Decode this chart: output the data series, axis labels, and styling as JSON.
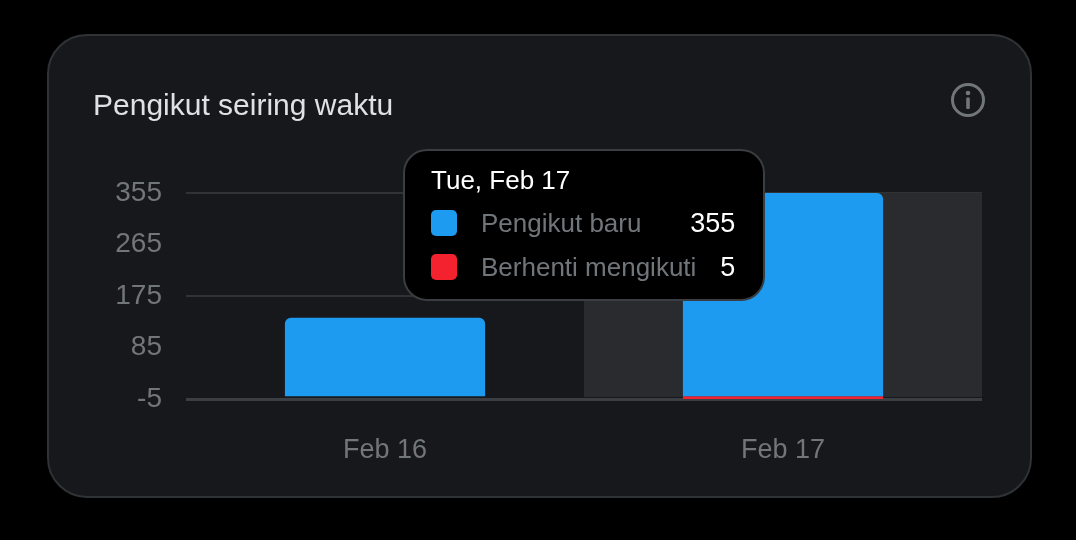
{
  "chart_data": {
    "type": "bar",
    "title": "Pengikut seiring waktu",
    "categories": [
      "Feb 16",
      "Feb 17"
    ],
    "series": [
      {
        "name": "Pengikut baru",
        "color": "#1d9bf0",
        "values": [
          137,
          355
        ]
      },
      {
        "name": "Berhenti mengikuti",
        "color": "#f4212e",
        "values": [
          0,
          -5
        ]
      }
    ],
    "stacked": true,
    "ylim": [
      -5,
      355
    ],
    "yticks": [
      -5,
      85,
      175,
      265,
      355
    ],
    "grid": "y",
    "legend": "top",
    "legend_title": "Tue, Feb 17",
    "annotations": [
      "355",
      "5"
    ],
    "bands": [
      {
        "axis": "x",
        "from": "Feb 17",
        "to": "Feb 17",
        "color": "#2a2b2f"
      }
    ]
  }
}
